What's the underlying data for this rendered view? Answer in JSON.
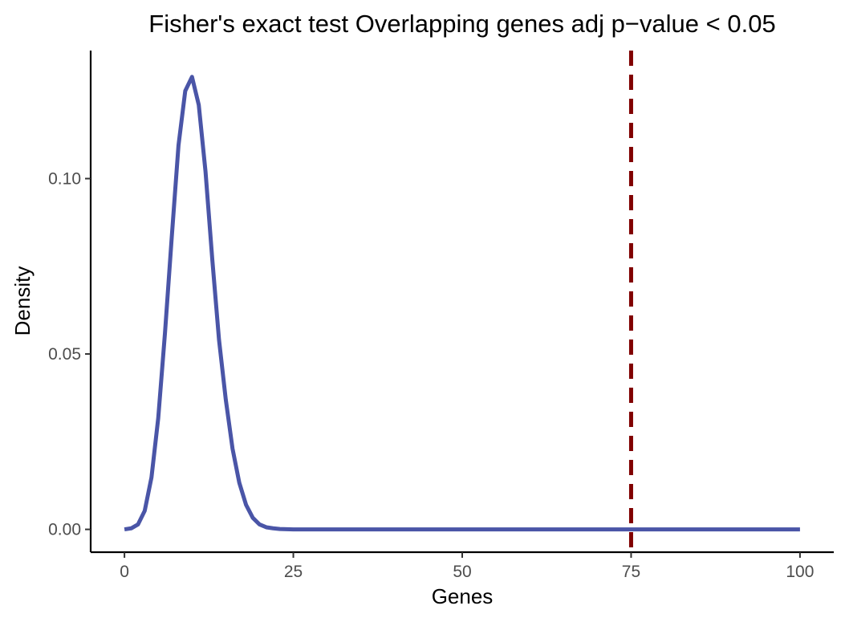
{
  "chart_data": {
    "type": "line",
    "title": "Fisher's exact test Overlapping genes adj p−value < 0.05",
    "xlabel": "Genes",
    "ylabel": "Density",
    "xlim": [
      -5,
      105
    ],
    "ylim": [
      -0.0065,
      0.1365
    ],
    "x_ticks": [
      0,
      25,
      50,
      75,
      100
    ],
    "x_tick_labels": [
      "0",
      "25",
      "50",
      "75",
      "100"
    ],
    "y_ticks": [
      0,
      0.05,
      0.1
    ],
    "y_tick_labels": [
      "0.00",
      "0.05",
      "0.10"
    ],
    "grid": false,
    "series": [
      {
        "color": "#4a55a7",
        "x": [
          0,
          1,
          2,
          3,
          4,
          5,
          6,
          7,
          8,
          9,
          10,
          11,
          12,
          13,
          14,
          15,
          16,
          17,
          18,
          19,
          20,
          21,
          22,
          23,
          24,
          25,
          30,
          40,
          50,
          60,
          70,
          80,
          90,
          100
        ],
        "y": [
          0.0,
          0.0003,
          0.0014,
          0.0053,
          0.0148,
          0.0317,
          0.056,
          0.0833,
          0.1095,
          0.125,
          0.129,
          0.121,
          0.102,
          0.077,
          0.054,
          0.037,
          0.023,
          0.0133,
          0.007,
          0.0033,
          0.0014,
          0.0006,
          0.0003,
          0.0001,
          5e-05,
          0.0,
          0.0,
          0.0,
          0.0,
          0.0,
          0.0,
          0.0,
          0.0,
          0.0
        ]
      }
    ],
    "vline": {
      "x": 75,
      "color": "#800000",
      "style": "dashed"
    }
  }
}
